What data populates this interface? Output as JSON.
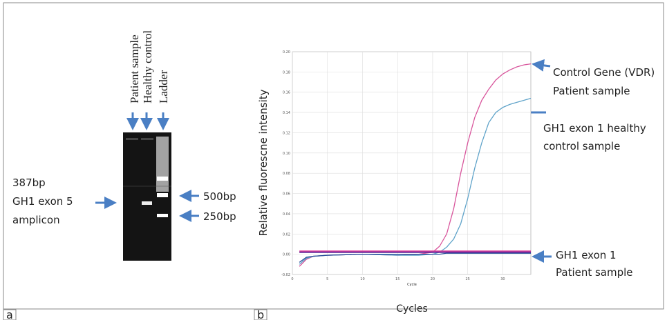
{
  "panel_a": {
    "label": "a",
    "lanes": [
      "Patient sample",
      "Healthy control",
      "Ladder"
    ],
    "band_label": [
      "387bp",
      "GH1 exon 5",
      "amplicon"
    ],
    "ladder_labels": [
      "500bp",
      "250bp"
    ]
  },
  "chart_data": {
    "type": "line",
    "panel_label": "b",
    "x_label": "Cycles",
    "y_label": "Relative fluorescne intensity",
    "x_caption": "Cycle",
    "x": [
      1,
      2,
      3,
      5,
      10,
      15,
      18,
      20,
      21,
      22,
      23,
      24,
      25,
      26,
      27,
      28,
      29,
      30,
      31,
      32,
      33,
      34
    ],
    "series": [
      {
        "color": "#d8559c",
        "values": [
          -0.012,
          -0.005,
          -0.002,
          -0.001,
          0,
          -0.001,
          0,
          0.002,
          0.008,
          0.02,
          0.045,
          0.08,
          0.11,
          0.135,
          0.152,
          0.163,
          0.172,
          0.178,
          0.182,
          0.185,
          0.187,
          0.188
        ]
      },
      {
        "color": "#5fa3c9",
        "values": [
          -0.01,
          -0.004,
          -0.002,
          -0.001,
          0,
          -0.001,
          -0.001,
          0,
          0.002,
          0.007,
          0.015,
          0.03,
          0.055,
          0.085,
          0.11,
          0.13,
          0.14,
          0.145,
          0.148,
          0.15,
          0.152,
          0.154
        ]
      },
      {
        "color": "#2a4f9a",
        "values": [
          -0.008,
          -0.003,
          -0.002,
          -0.001,
          0,
          0,
          0,
          0,
          0,
          0.001,
          0.001,
          0.001,
          0.001,
          0.001,
          0.001,
          0.001,
          0.001,
          0.001,
          0.001,
          0.001,
          0.001,
          0.001
        ]
      },
      {
        "color": "#e0409a",
        "values": [
          0.003,
          0.003,
          0.003,
          0.003,
          0.003,
          0.003,
          0.003,
          0.003,
          0.003,
          0.003,
          0.003,
          0.003,
          0.003,
          0.003,
          0.003,
          0.003,
          0.003,
          0.003,
          0.003,
          0.003,
          0.003,
          0.003
        ]
      },
      {
        "color": "#6a2a9a",
        "values": [
          0.002,
          0.002,
          0.002,
          0.002,
          0.002,
          0.002,
          0.002,
          0.002,
          0.002,
          0.002,
          0.002,
          0.002,
          0.002,
          0.002,
          0.002,
          0.002,
          0.002,
          0.002,
          0.002,
          0.002,
          0.002,
          0.002
        ]
      }
    ],
    "xlim": [
      0,
      34
    ],
    "xticks": [
      0,
      5,
      10,
      15,
      20,
      25,
      30
    ],
    "ylim": [
      -0.02,
      0.2
    ],
    "yticks": [
      {
        "value": -0.02,
        "label": "-0.02"
      },
      {
        "value": 0,
        "label": "0.00"
      },
      {
        "value": 0.02,
        "label": "0.02"
      },
      {
        "value": 0.04,
        "label": "0.04"
      },
      {
        "value": 0.06,
        "label": "0.06"
      },
      {
        "value": 0.08,
        "label": "0.08"
      },
      {
        "value": 0.1,
        "label": "0.10"
      },
      {
        "value": 0.12,
        "label": "0.12"
      },
      {
        "value": 0.14,
        "label": "0.14"
      },
      {
        "value": 0.16,
        "label": "0.16"
      },
      {
        "value": 0.18,
        "label": "0.18"
      },
      {
        "value": 0.2,
        "label": "0.20"
      }
    ],
    "grid": true,
    "annotations": [
      [
        "Control Gene (VDR)",
        "Patient sample"
      ],
      [
        "GH1 exon 1 healthy",
        "control sample"
      ],
      [
        "GH1 exon 1",
        "Patient sample"
      ]
    ]
  }
}
